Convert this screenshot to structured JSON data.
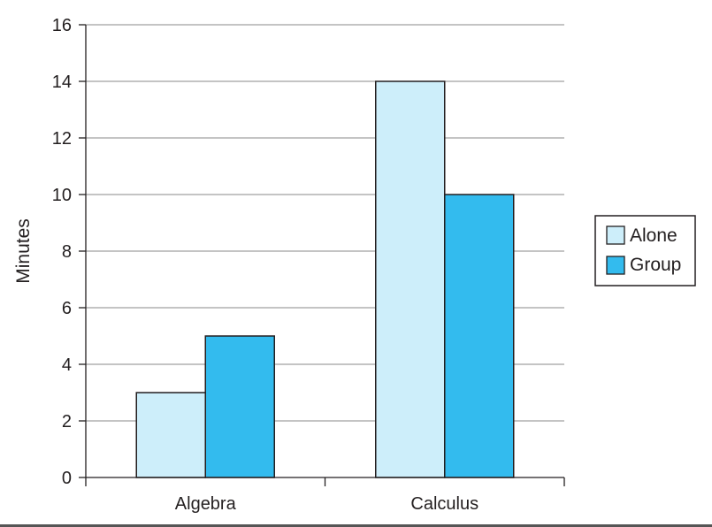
{
  "chart_data": {
    "type": "bar",
    "categories": [
      "Algebra",
      "Calculus"
    ],
    "series": [
      {
        "name": "Alone",
        "values": [
          3,
          14
        ],
        "color": "#cdeefa"
      },
      {
        "name": "Group",
        "values": [
          5,
          10
        ],
        "color": "#33bbee"
      }
    ],
    "title": "",
    "xlabel": "",
    "ylabel": "Minutes",
    "ylim": [
      0,
      16
    ],
    "yticks": [
      "0",
      "2",
      "4",
      "6",
      "8",
      "10",
      "12",
      "14",
      "16"
    ],
    "grid": true,
    "legend_position": "right"
  }
}
